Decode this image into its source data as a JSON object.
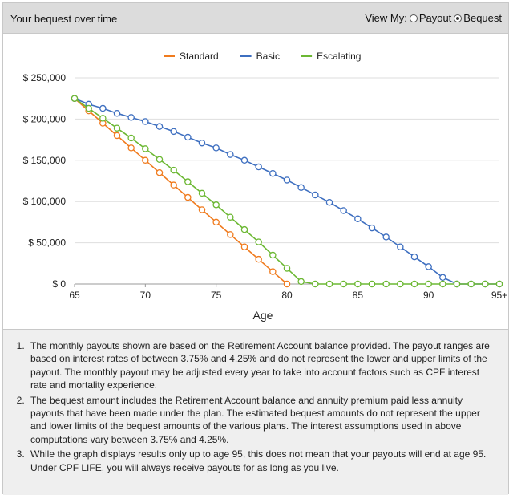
{
  "header": {
    "title": "Your bequest over time",
    "view_label": "View My:",
    "options": [
      {
        "label": "Payout",
        "selected": false
      },
      {
        "label": "Bequest",
        "selected": true
      }
    ]
  },
  "chart_data": {
    "type": "line",
    "title": "",
    "xlabel": "Age",
    "ylabel": "",
    "x_ticks": [
      "65",
      "70",
      "75",
      "80",
      "85",
      "90",
      "95+"
    ],
    "y_ticks": [
      "$ 250,000",
      "$ 200,000",
      "$ 150,000",
      "$ 100,000",
      "$ 50,000",
      "$ 0"
    ],
    "xlim": [
      65,
      95
    ],
    "ylim": [
      0,
      250000
    ],
    "grid": true,
    "legend_position": "top",
    "x": [
      65,
      66,
      67,
      68,
      69,
      70,
      71,
      72,
      73,
      74,
      75,
      76,
      77,
      78,
      79,
      80,
      81,
      82,
      83,
      84,
      85,
      86,
      87,
      88,
      89,
      90,
      91,
      92,
      93,
      94,
      95
    ],
    "series": [
      {
        "name": "Standard",
        "color": "#f07b1e",
        "values": [
          225000,
          210000,
          195000,
          180000,
          165000,
          150000,
          135000,
          120000,
          105000,
          90000,
          75000,
          60000,
          45000,
          30000,
          15000,
          0,
          null,
          null,
          null,
          null,
          null,
          null,
          null,
          null,
          null,
          null,
          null,
          null,
          null,
          null,
          null
        ]
      },
      {
        "name": "Basic",
        "color": "#3e6fc0",
        "values": [
          225000,
          218000,
          213000,
          207000,
          202000,
          197000,
          191000,
          185000,
          178000,
          171000,
          165000,
          157000,
          150000,
          142000,
          134000,
          126000,
          117000,
          108000,
          99000,
          89000,
          79000,
          68000,
          57000,
          45000,
          33000,
          21000,
          8000,
          0,
          0,
          0,
          0
        ]
      },
      {
        "name": "Escalating",
        "color": "#6cb833",
        "values": [
          225000,
          213000,
          201000,
          189000,
          177000,
          164000,
          151000,
          138000,
          124000,
          110000,
          96000,
          81000,
          66000,
          51000,
          35000,
          19000,
          3000,
          0,
          0,
          0,
          0,
          0,
          0,
          0,
          0,
          0,
          0,
          0,
          0,
          0,
          0
        ]
      }
    ]
  },
  "notes": [
    "The monthly payouts shown are based on the Retirement Account balance provided. The payout ranges are based on interest rates of between 3.75% and 4.25% and do not represent the lower and upper limits of the payout. The monthly payout may be adjusted every year to take into account factors such as CPF interest rate and mortality experience.",
    "The bequest amount includes the Retirement Account balance and annuity premium paid less annuity payouts that have been made under the plan. The estimated bequest amounts do not represent the upper and lower limits of the bequest amounts of the various plans. The interest assumptions used in above computations vary between 3.75% and 4.25%.",
    "While the graph displays results only up to age 95, this does not mean that your payouts will end at age 95. Under CPF LIFE, you will always receive payouts for as long as you live."
  ]
}
